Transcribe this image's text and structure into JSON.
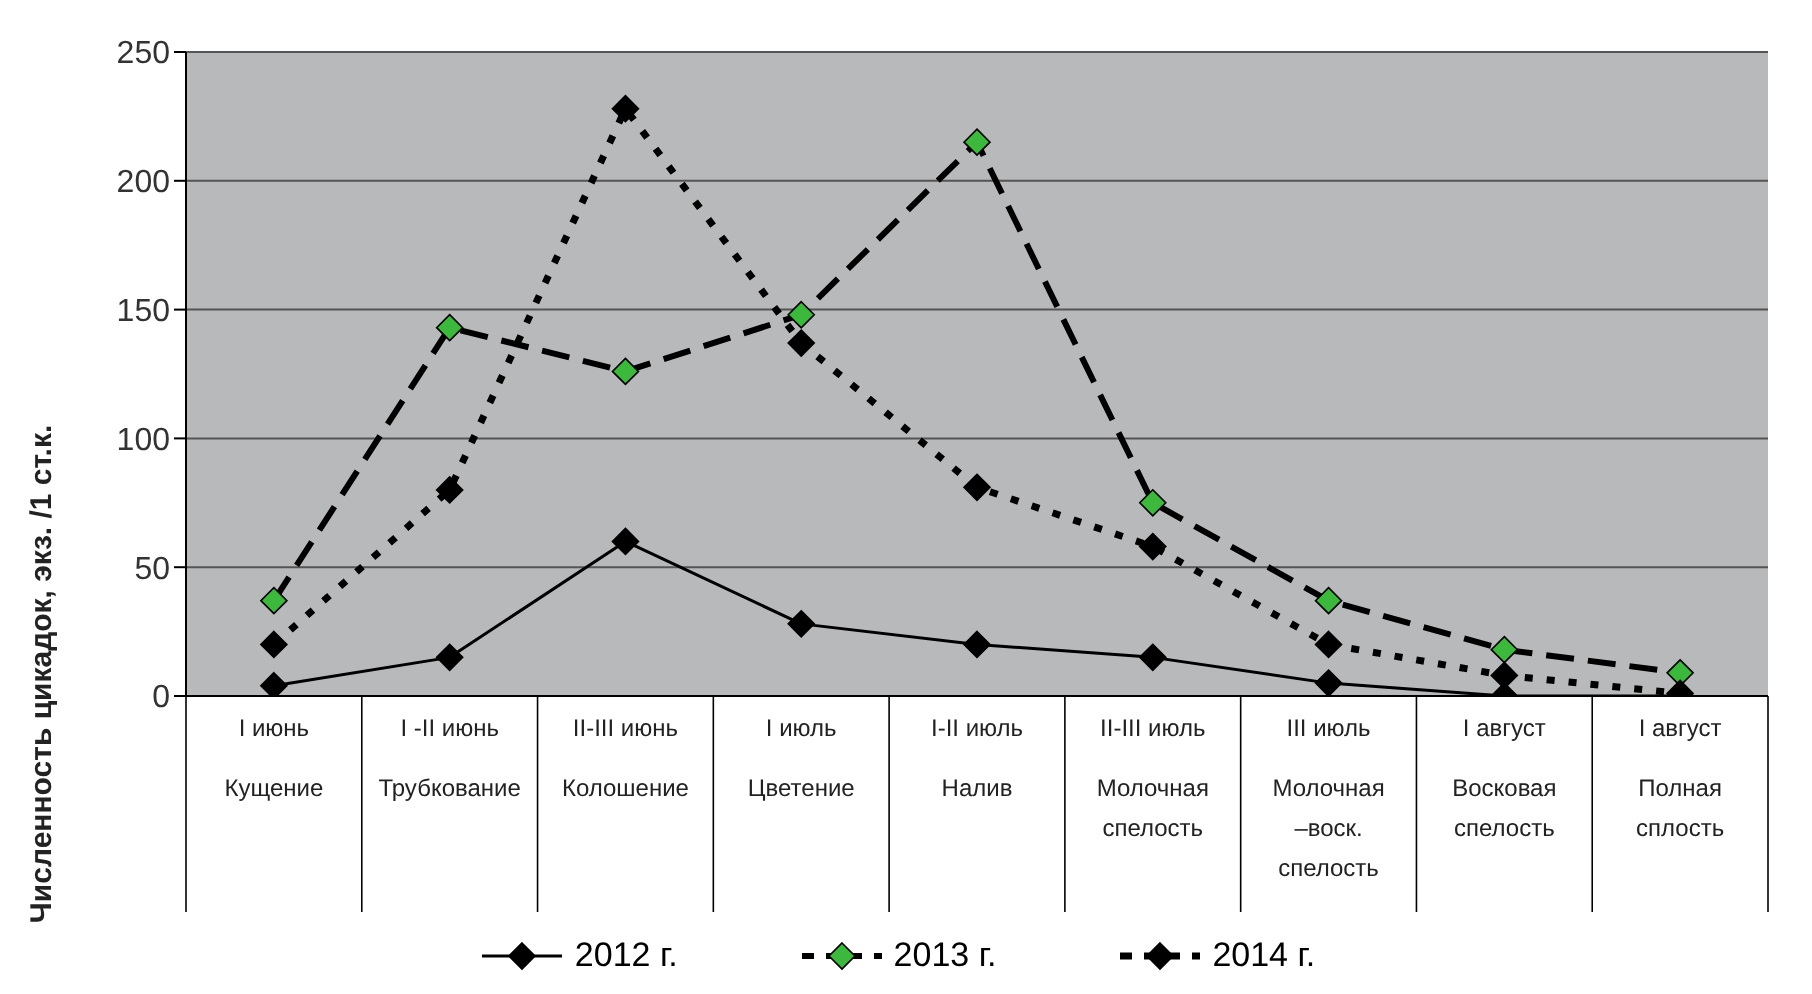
{
  "chart_data": {
    "type": "line",
    "ylabel": "Численность цикадок, экз. /1 ст.к.",
    "categories": [
      "I июнь\nКущение",
      "I -II июнь\nТрубкование",
      "II-III июнь\nКолошение",
      "I июль\nЦветение",
      "I-II  июль\nНалив",
      "II-III июль\nМолочная\nспелость",
      "III июль\nМолочная\n–воск.\nспелость",
      "I август\nВосковая\nспелость",
      "I август\nПолная\nсплость"
    ],
    "series": [
      {
        "name": "2012 г.",
        "color": "#000000",
        "line_style": "solid",
        "values": [
          4,
          15,
          60,
          28,
          20,
          15,
          5,
          0,
          0
        ]
      },
      {
        "name": "2013 г.",
        "color": "#3cb93c",
        "line_style": "dashed",
        "values": [
          37,
          143,
          126,
          148,
          215,
          75,
          37,
          18,
          9
        ]
      },
      {
        "name": "2014 г.",
        "color": "#000000",
        "line_style": "dotted",
        "values": [
          20,
          80,
          228,
          137,
          81,
          58,
          20,
          8,
          1
        ]
      }
    ],
    "ylim": [
      0,
      250
    ],
    "yticks": [
      0,
      50,
      100,
      150,
      200,
      250
    ],
    "grid": "y",
    "legend": "bottom",
    "marker": "diamond"
  }
}
